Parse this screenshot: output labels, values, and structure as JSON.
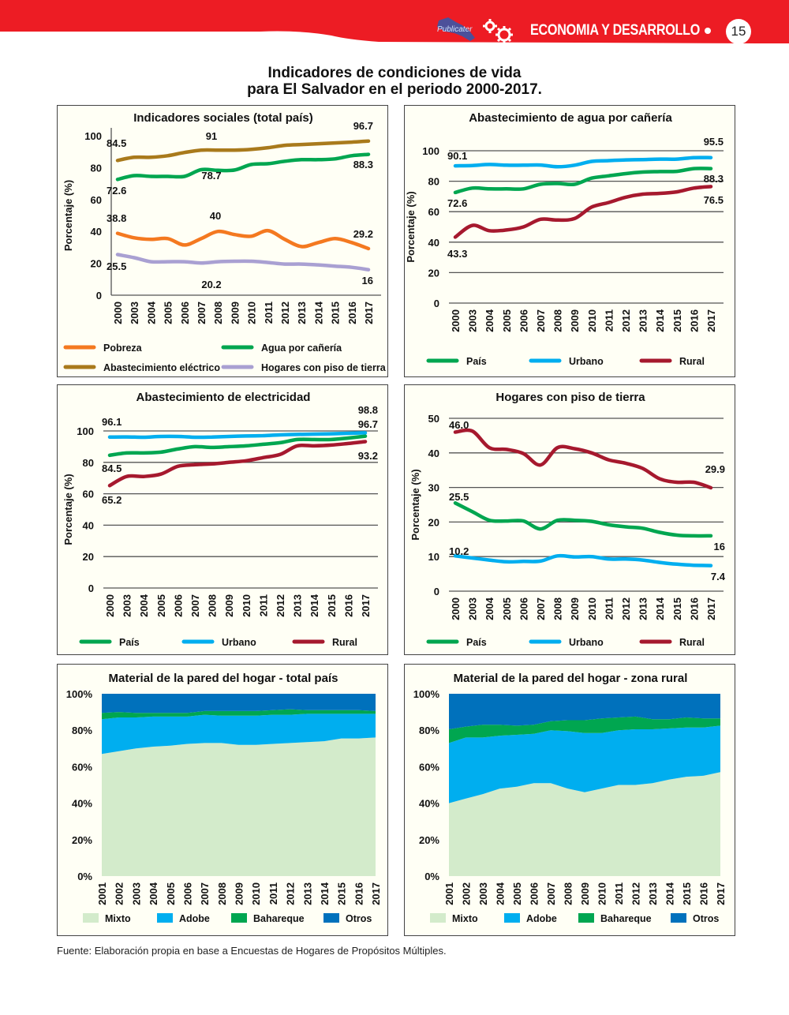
{
  "header": {
    "section_title": "ECONOMIA Y DESARROLLO",
    "page_number": "15",
    "logo_text": "Publicater",
    "brand_color": "#ed1c24"
  },
  "main_title": {
    "line1": "Indicadores de condiciones de vida",
    "line2": "para El Salvador en el periodo 2000-2017."
  },
  "source": "Fuente: Elaboración propia en base a Encuestas de Hogares de Propósitos Múltiples.",
  "chart_data": [
    {
      "id": "social",
      "type": "line",
      "title": "Indicadores sociales (total país)",
      "ylabel": "Porcentaje (%)",
      "xlabel": "",
      "ylim": [
        0,
        100
      ],
      "yticks": [
        0,
        20,
        40,
        60,
        80,
        100
      ],
      "grid": false,
      "categories": [
        "2000",
        "2003",
        "2004",
        "2005",
        "2006",
        "2007",
        "2008",
        "2009",
        "2010",
        "2011",
        "2012",
        "2013",
        "2014",
        "2015",
        "2016",
        "2017"
      ],
      "series": [
        {
          "name": "Pobreza",
          "color": "#f47920",
          "values": [
            38.8,
            36,
            35,
            35.5,
            31.5,
            35.5,
            40,
            38,
            37,
            40.5,
            35,
            30.5,
            33,
            35.5,
            33,
            29.2
          ]
        },
        {
          "name": "Agua por cañería",
          "color": "#00a650",
          "values": [
            72.6,
            75,
            74.5,
            74.5,
            74.5,
            78.7,
            78.3,
            78.5,
            82,
            82.5,
            84,
            85,
            85,
            85.5,
            87.5,
            88.3
          ]
        },
        {
          "name": "Abastecimiento eléctrico",
          "color": "#a97a1c",
          "values": [
            84.5,
            86.5,
            86.5,
            87.5,
            89.5,
            91,
            91,
            91,
            91.5,
            92.5,
            94,
            94.5,
            95,
            95.5,
            96,
            96.7
          ]
        },
        {
          "name": "Hogares con piso de tierra",
          "color": "#a9a0d2",
          "values": [
            25.5,
            23.5,
            21,
            21,
            21,
            20.2,
            21,
            21.3,
            21.3,
            20.5,
            19.5,
            19.5,
            19,
            18.2,
            17.5,
            16
          ]
        }
      ],
      "annotations": [
        {
          "text": "84.5"
        },
        {
          "text": "91"
        },
        {
          "text": "96.7"
        },
        {
          "text": "72.6"
        },
        {
          "text": "78.7"
        },
        {
          "text": "88.3"
        },
        {
          "text": "38.8"
        },
        {
          "text": "40"
        },
        {
          "text": "29.2"
        },
        {
          "text": "25.5"
        },
        {
          "text": "20.2"
        },
        {
          "text": "16"
        }
      ],
      "legend": [
        "Pobreza",
        "Agua por cañería",
        "Abastecimiento eléctrico",
        "Hogares con piso de tierra"
      ],
      "legend_position": "bottom"
    },
    {
      "id": "agua",
      "type": "line",
      "title": "Abastecimiento de agua por cañería",
      "ylabel": "Porcentaje (%)",
      "xlabel": "",
      "ylim": [
        0,
        100
      ],
      "yticks": [
        0,
        20,
        40,
        60,
        80,
        100
      ],
      "grid": true,
      "categories": [
        "2000",
        "2003",
        "2004",
        "2005",
        "2006",
        "2007",
        "2008",
        "2009",
        "2010",
        "2011",
        "2012",
        "2013",
        "2014",
        "2015",
        "2016",
        "2017"
      ],
      "series": [
        {
          "name": "País",
          "color": "#00a650",
          "values": [
            72.6,
            75.5,
            75,
            75,
            75,
            78,
            78.5,
            78,
            82,
            83.5,
            85,
            86,
            86.3,
            86.5,
            88.3,
            88.3
          ]
        },
        {
          "name": "Urbano",
          "color": "#00aeef",
          "values": [
            90.1,
            90.3,
            91,
            90.5,
            90.5,
            90.6,
            89.5,
            90.5,
            93,
            93.5,
            94,
            94.2,
            94.5,
            94.5,
            95.5,
            95.5
          ]
        },
        {
          "name": "Rural",
          "color": "#a6192e",
          "values": [
            43.3,
            51,
            47.5,
            48,
            50,
            55,
            54.5,
            55.5,
            63,
            66,
            69.5,
            71.5,
            72,
            73,
            75.5,
            76.5
          ]
        }
      ],
      "annotations": [
        {
          "text": "90.1"
        },
        {
          "text": "95.5"
        },
        {
          "text": "72.6"
        },
        {
          "text": "88.3"
        },
        {
          "text": "43.3"
        },
        {
          "text": "76.5"
        }
      ],
      "legend": [
        "País",
        "Urbano",
        "Rural"
      ],
      "legend_position": "bottom"
    },
    {
      "id": "elec",
      "type": "line",
      "title": "Abastecimiento de electricidad",
      "ylabel": "Porcentaje (%)",
      "xlabel": "",
      "ylim": [
        0,
        100
      ],
      "yticks": [
        0,
        20,
        40,
        60,
        80,
        100
      ],
      "grid": true,
      "categories": [
        "2000",
        "2003",
        "2004",
        "2005",
        "2006",
        "2007",
        "2008",
        "2009",
        "2010",
        "2011",
        "2012",
        "2013",
        "2014",
        "2015",
        "2016",
        "2017"
      ],
      "series": [
        {
          "name": "País",
          "color": "#00a650",
          "values": [
            84.5,
            86,
            86,
            86.5,
            88.5,
            90,
            89.5,
            90,
            90.5,
            91.5,
            92.5,
            94.5,
            94.5,
            94.5,
            95.5,
            96.7
          ]
        },
        {
          "name": "Urbano",
          "color": "#00aeef",
          "values": [
            96.1,
            96.2,
            96,
            96.5,
            96.5,
            96,
            96.1,
            96.5,
            96.8,
            97,
            97.5,
            97.8,
            98,
            98.2,
            98.5,
            98.8
          ]
        },
        {
          "name": "Rural",
          "color": "#a6192e",
          "values": [
            65.2,
            71,
            71,
            72.5,
            77.5,
            78.5,
            79,
            80,
            81,
            83,
            85,
            90.5,
            90.5,
            91,
            92,
            93.2
          ]
        }
      ],
      "annotations": [
        {
          "text": "96.1"
        },
        {
          "text": "98.8"
        },
        {
          "text": "96.7"
        },
        {
          "text": "84.5"
        },
        {
          "text": "93.2"
        },
        {
          "text": "65.2"
        }
      ],
      "legend": [
        "País",
        "Urbano",
        "Rural"
      ],
      "legend_position": "bottom"
    },
    {
      "id": "piso",
      "type": "line",
      "title": "Hogares con piso de tierra",
      "ylabel": "Porcentaje (%)",
      "xlabel": "",
      "ylim": [
        0,
        50
      ],
      "yticks": [
        0,
        10,
        20,
        30,
        40,
        50
      ],
      "grid": true,
      "categories": [
        "2000",
        "2003",
        "2004",
        "2005",
        "2006",
        "2007",
        "2008",
        "2009",
        "2010",
        "2011",
        "2012",
        "2013",
        "2014",
        "2015",
        "2016",
        "2017"
      ],
      "series": [
        {
          "name": "País",
          "color": "#00a650",
          "values": [
            25.5,
            23,
            20.5,
            20.3,
            20.3,
            18,
            20.5,
            20.5,
            20.2,
            19.2,
            18.6,
            18.2,
            17,
            16.2,
            16,
            16
          ]
        },
        {
          "name": "Urbano",
          "color": "#00aeef",
          "values": [
            10.2,
            9.6,
            9,
            8.5,
            8.6,
            8.7,
            10.2,
            9.9,
            10,
            9.3,
            9.3,
            9,
            8.3,
            7.8,
            7.5,
            7.4
          ]
        },
        {
          "name": "Rural",
          "color": "#a6192e",
          "values": [
            46.0,
            46.3,
            41.5,
            41,
            39.8,
            36.5,
            41.5,
            41.2,
            40,
            38,
            37,
            35.5,
            32.5,
            31.5,
            31.5,
            29.9
          ]
        }
      ],
      "annotations": [
        {
          "text": "46.0"
        },
        {
          "text": "29.9"
        },
        {
          "text": "25.5"
        },
        {
          "text": "16"
        },
        {
          "text": "10.2"
        },
        {
          "text": "7.4"
        }
      ],
      "legend": [
        "País",
        "Urbano",
        "Rural"
      ],
      "legend_position": "bottom"
    },
    {
      "id": "pared-total",
      "type": "area",
      "stacked": "percent",
      "title": "Material de la pared del hogar - total país",
      "ylabel": "",
      "xlabel": "",
      "ylim": [
        0,
        100
      ],
      "yticks": [
        "0%",
        "20%",
        "40%",
        "60%",
        "80%",
        "100%"
      ],
      "categories": [
        "2001",
        "2002",
        "2003",
        "2004",
        "2005",
        "2006",
        "2007",
        "2008",
        "2009",
        "2010",
        "2011",
        "2012",
        "2013",
        "2014",
        "2015",
        "2016",
        "2017"
      ],
      "series": [
        {
          "name": "Mixto",
          "color": "#d3ebcb",
          "values": [
            67,
            68.5,
            70,
            71,
            71.5,
            72.5,
            73,
            73,
            72,
            72,
            72.5,
            73,
            73.5,
            74,
            75.5,
            75.5,
            76
          ]
        },
        {
          "name": "Adobe",
          "color": "#00aeef",
          "values": [
            19,
            18.5,
            17,
            16.5,
            16,
            15,
            15.5,
            15,
            16,
            16,
            16,
            15.5,
            15.5,
            15,
            13.5,
            13.5,
            13
          ]
        },
        {
          "name": "Bahareque",
          "color": "#00a650",
          "values": [
            3.5,
            3,
            2.5,
            2,
            2,
            2,
            2,
            2.5,
            2.5,
            2.5,
            2.5,
            3,
            2,
            2,
            2,
            2,
            1.5
          ]
        },
        {
          "name": "Otros",
          "color": "#0071bc",
          "values": [
            10.5,
            10,
            10.5,
            10.5,
            10.5,
            10.5,
            9.5,
            9.5,
            9.5,
            9.5,
            9,
            8.5,
            9,
            9,
            9,
            9,
            9.5
          ]
        }
      ],
      "legend": [
        "Mixto",
        "Adobe",
        "Bahareque",
        "Otros"
      ],
      "legend_position": "bottom"
    },
    {
      "id": "pared-rural",
      "type": "area",
      "stacked": "percent",
      "title": "Material de la pared del hogar - zona rural",
      "ylabel": "",
      "xlabel": "",
      "ylim": [
        0,
        100
      ],
      "yticks": [
        "0%",
        "20%",
        "40%",
        "60%",
        "80%",
        "100%"
      ],
      "categories": [
        "2001",
        "2002",
        "2003",
        "2004",
        "2005",
        "2006",
        "2007",
        "2008",
        "2009",
        "2010",
        "2011",
        "2012",
        "2013",
        "2014",
        "2015",
        "2016",
        "2017"
      ],
      "series": [
        {
          "name": "Mixto",
          "color": "#d3ebcb",
          "values": [
            40,
            42.5,
            45,
            48,
            49,
            51,
            51,
            48,
            46,
            48,
            50,
            50,
            51,
            53,
            54.5,
            55,
            57
          ]
        },
        {
          "name": "Adobe",
          "color": "#00aeef",
          "values": [
            33,
            33.5,
            31,
            29,
            28.5,
            27,
            29,
            31.5,
            32.5,
            30.5,
            30,
            30.5,
            29.5,
            28,
            27,
            26.5,
            25.5
          ]
        },
        {
          "name": "Bahareque",
          "color": "#00a650",
          "values": [
            7.5,
            6,
            7,
            6,
            5,
            5,
            5,
            6,
            7,
            8,
            7,
            7,
            5.5,
            5,
            5.5,
            5,
            4
          ]
        },
        {
          "name": "Otros",
          "color": "#0071bc",
          "values": [
            19.5,
            18,
            17,
            17,
            17.5,
            17,
            15,
            14.5,
            14.5,
            13.5,
            13,
            12.5,
            14,
            14,
            13,
            13.5,
            13.5
          ]
        }
      ],
      "legend": [
        "Mixto",
        "Adobe",
        "Bahareque",
        "Otros"
      ],
      "legend_position": "bottom"
    }
  ]
}
